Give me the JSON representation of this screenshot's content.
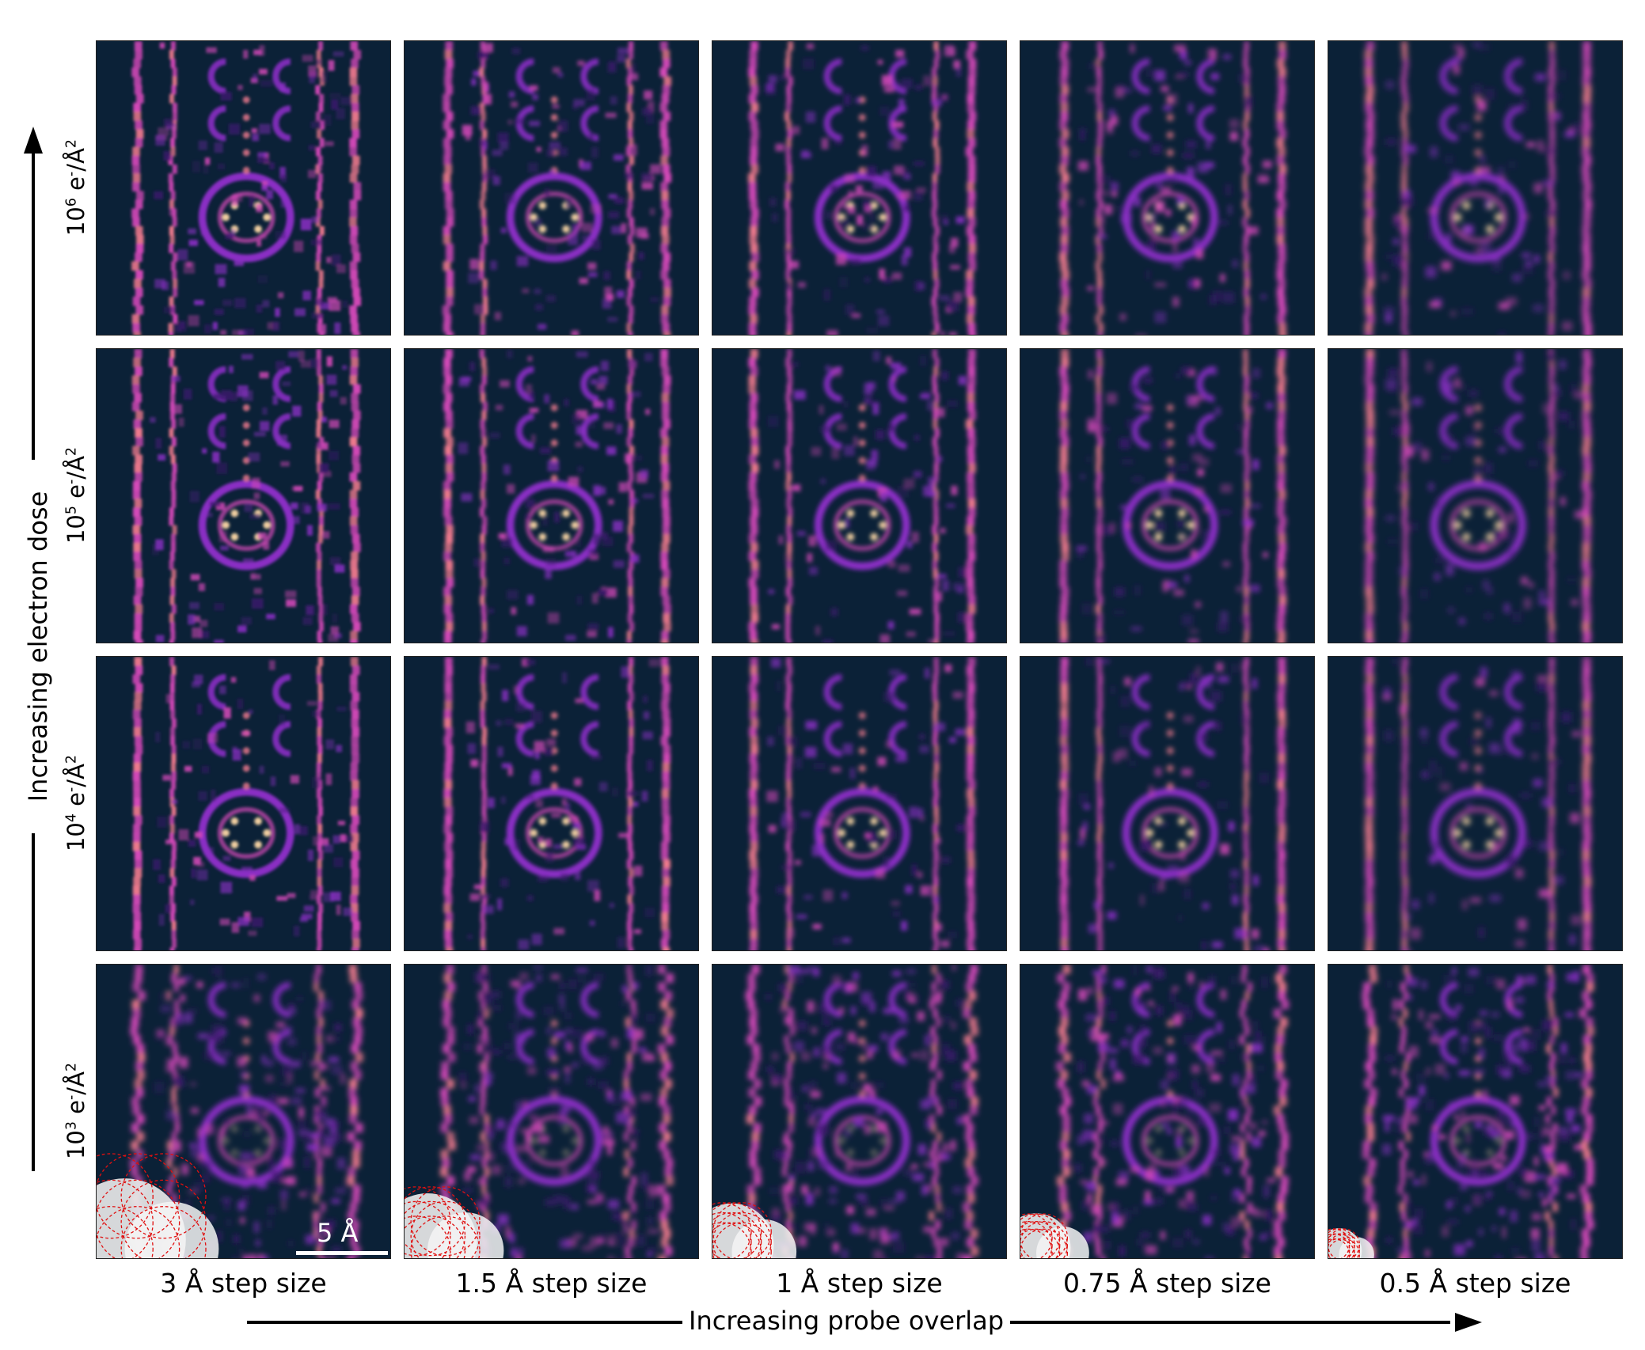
{
  "figure": {
    "colormap": [
      "#0b2137",
      "#3a1a6b",
      "#8a2fc4",
      "#d348b8",
      "#f07a8e",
      "#fbd7a5"
    ],
    "columns": [
      {
        "label": "3 Å step size"
      },
      {
        "label": "1.5 Å step size"
      },
      {
        "label": "1 Å step size"
      },
      {
        "label": "0.75 Å step size"
      },
      {
        "label": "0.5 Å step size"
      }
    ],
    "rows": [
      {
        "base": "10",
        "exp": "6",
        "unit": " e",
        "unit_sup": "-",
        "unit_tail": "/Å",
        "unit_tail_sup": "2"
      },
      {
        "base": "10",
        "exp": "5",
        "unit": " e",
        "unit_sup": "-",
        "unit_tail": "/Å",
        "unit_tail_sup": "2"
      },
      {
        "base": "10",
        "exp": "4",
        "unit": " e",
        "unit_sup": "-",
        "unit_tail": "/Å",
        "unit_tail_sup": "2"
      },
      {
        "base": "10",
        "exp": "3",
        "unit": " e",
        "unit_sup": "-",
        "unit_tail": "/Å",
        "unit_tail_sup": "2"
      }
    ],
    "y_axis_label": "Increasing electron dose",
    "x_axis_label": "Increasing probe overlap",
    "scale_bar_label": "5 Å",
    "probe_overlay_color": "#e01010"
  }
}
